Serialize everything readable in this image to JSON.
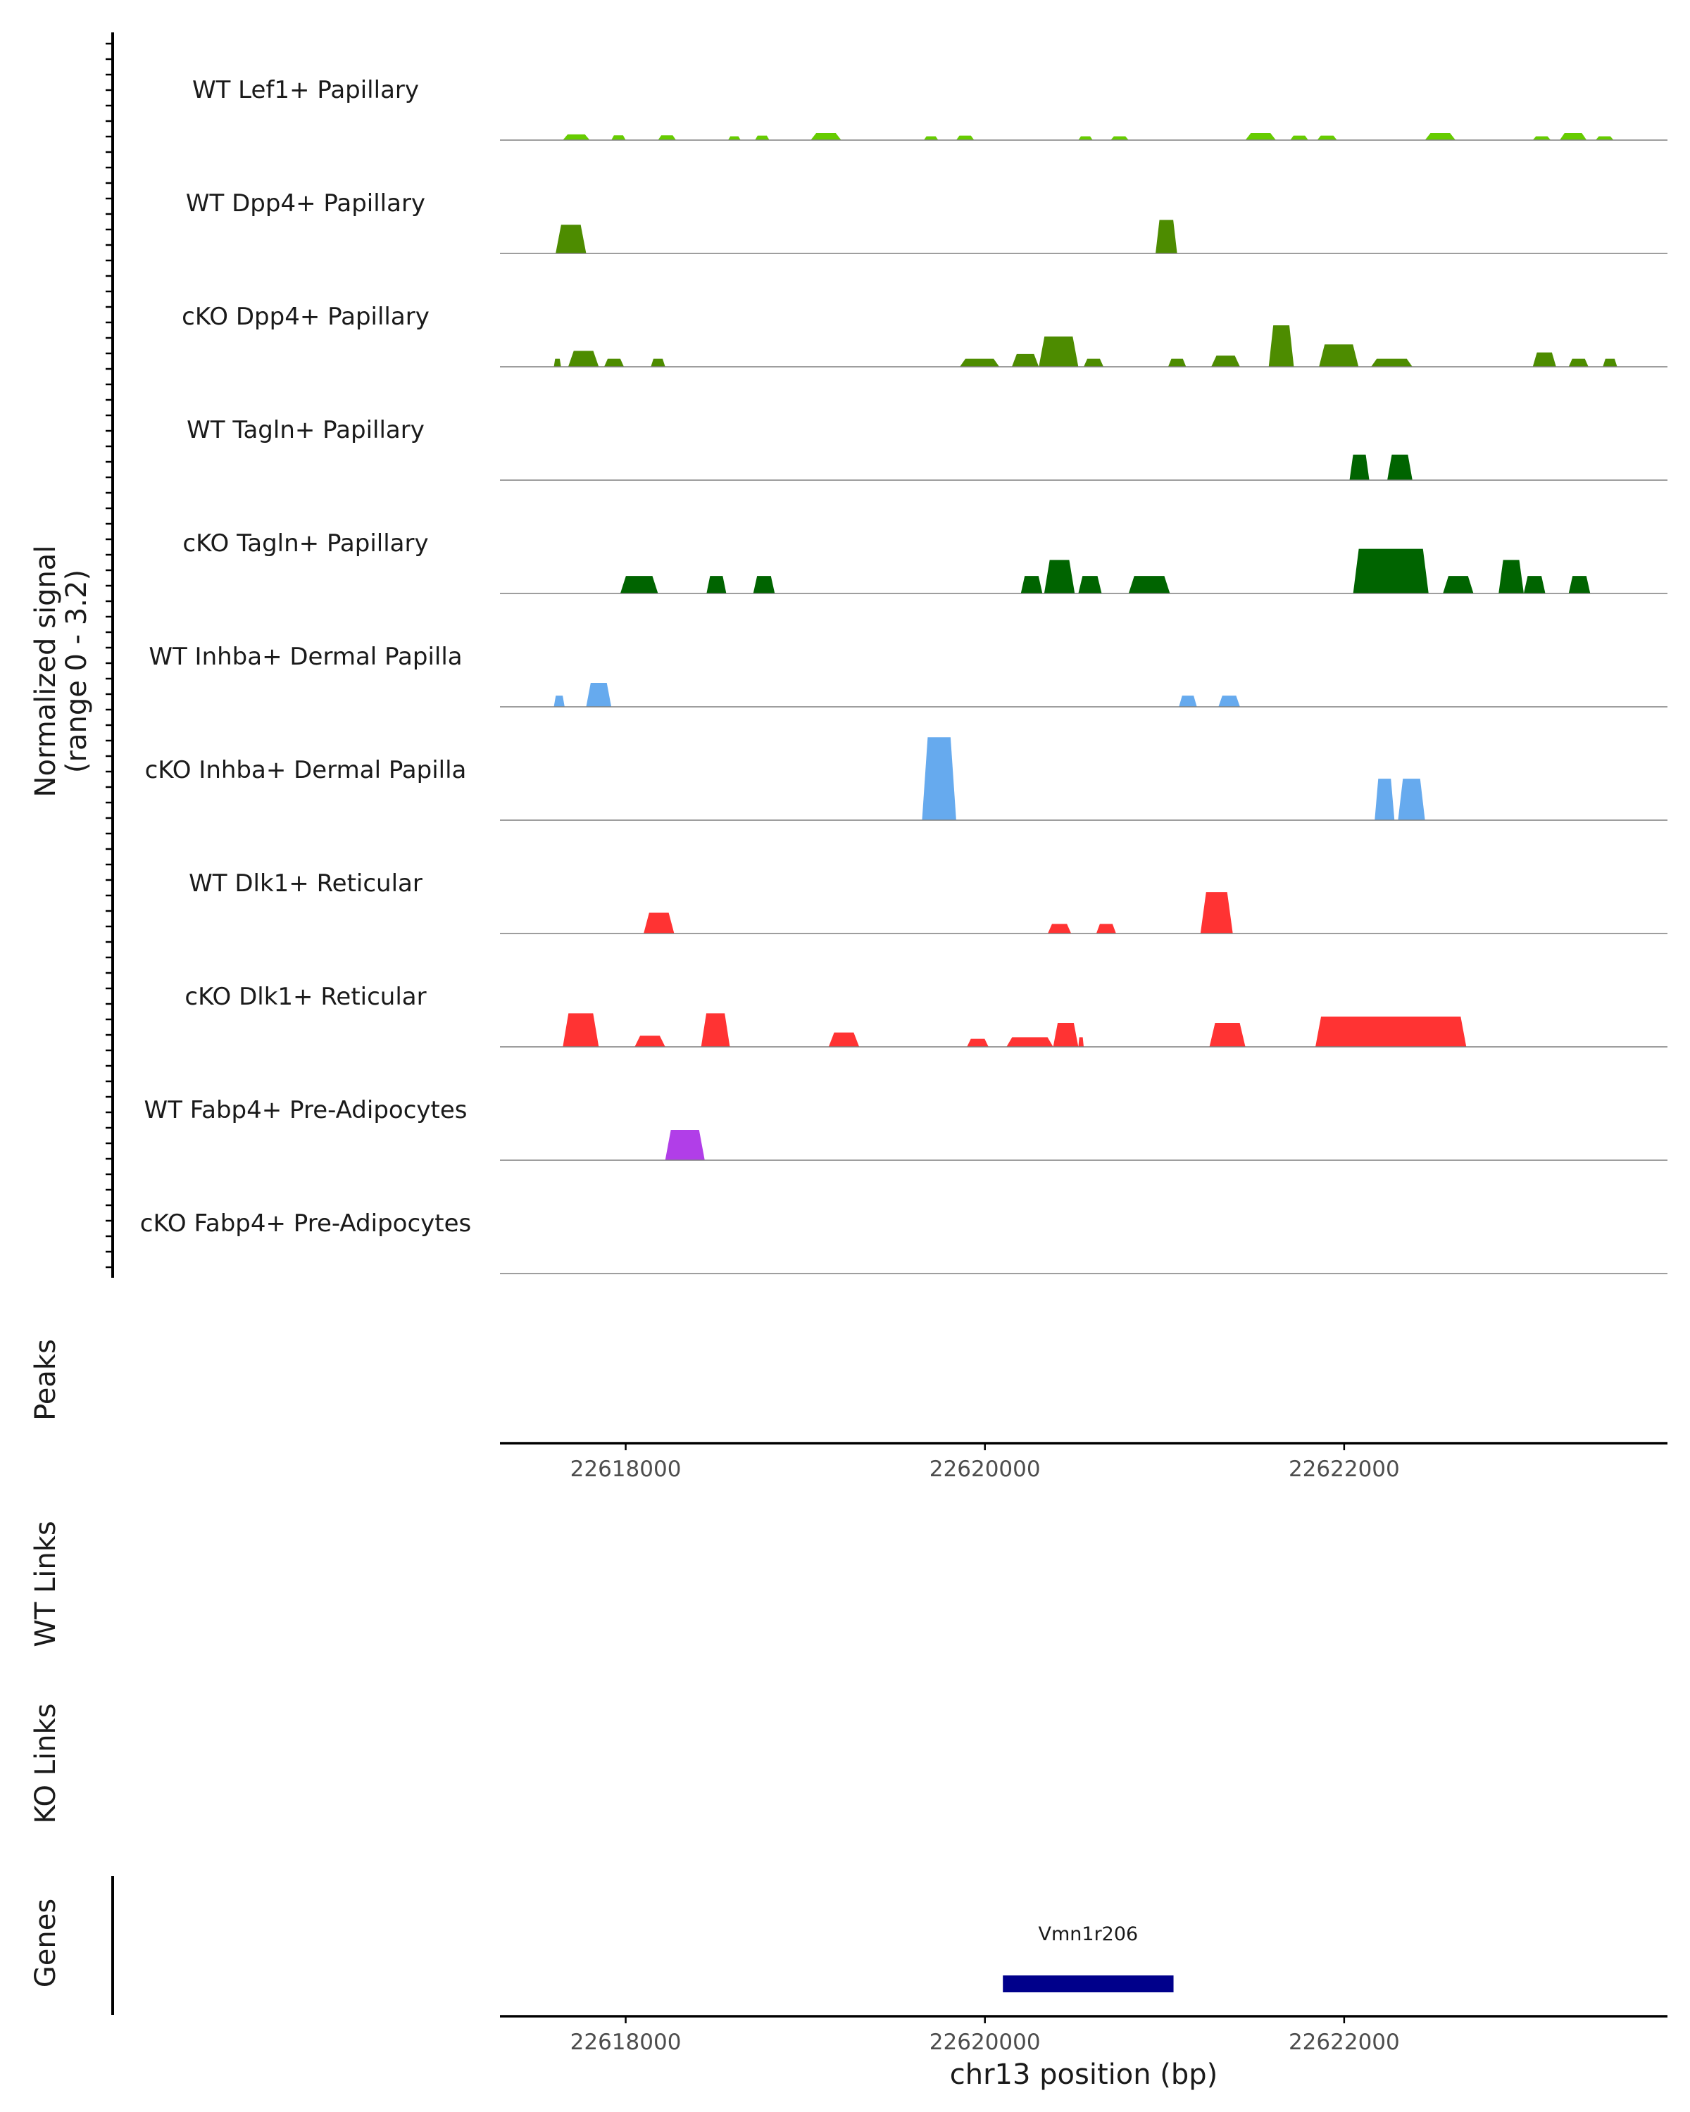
{
  "chart_data": {
    "type": "coverage",
    "signal_axis_title": "Normalized signal",
    "signal_axis_range_label": "(range 0 - 3.2)",
    "ylim": [
      0,
      3.2
    ],
    "xlim": [
      22617300,
      22623800
    ],
    "x_ticks": [
      22618000,
      22620000,
      22622000
    ],
    "x_tick_labels": [
      "22618000",
      "22620000",
      "22622000"
    ],
    "xlabel": "chr13 position (bp)",
    "tracks": [
      {
        "name": "WT Lef1+ Papillary",
        "color": "#66cc00",
        "peaks": [
          [
            22617650,
            22617800,
            0.18
          ],
          [
            22617920,
            22618000,
            0.15
          ],
          [
            22618180,
            22618280,
            0.15
          ],
          [
            22618570,
            22618640,
            0.12
          ],
          [
            22618720,
            22618800,
            0.14
          ],
          [
            22619030,
            22619200,
            0.22
          ],
          [
            22619660,
            22619740,
            0.12
          ],
          [
            22619840,
            22619940,
            0.14
          ],
          [
            22620520,
            22620600,
            0.12
          ],
          [
            22620700,
            22620800,
            0.12
          ],
          [
            22621450,
            22621620,
            0.22
          ],
          [
            22621700,
            22621800,
            0.14
          ],
          [
            22621850,
            22621960,
            0.14
          ],
          [
            22622450,
            22622620,
            0.22
          ],
          [
            22623050,
            22623150,
            0.12
          ],
          [
            22623200,
            22623350,
            0.22
          ],
          [
            22623400,
            22623500,
            0.12
          ]
        ]
      },
      {
        "name": "WT Dpp4+ Papillary",
        "color": "#4d8c00",
        "peaks": [
          [
            22617610,
            22617780,
            0.9
          ],
          [
            22620950,
            22621070,
            1.05
          ]
        ]
      },
      {
        "name": "cKO Dpp4+ Papillary",
        "color": "#4d8c00",
        "peaks": [
          [
            22617600,
            22617640,
            0.25
          ],
          [
            22617680,
            22617850,
            0.5
          ],
          [
            22617880,
            22617990,
            0.25
          ],
          [
            22618140,
            22618220,
            0.25
          ],
          [
            22619860,
            22620080,
            0.25
          ],
          [
            22620150,
            22620300,
            0.4
          ],
          [
            22620300,
            22620520,
            0.95
          ],
          [
            22620550,
            22620660,
            0.25
          ],
          [
            22621020,
            22621120,
            0.25
          ],
          [
            22621260,
            22621420,
            0.35
          ],
          [
            22621580,
            22621720,
            1.3
          ],
          [
            22621860,
            22622080,
            0.7
          ],
          [
            22622150,
            22622380,
            0.25
          ],
          [
            22623050,
            22623180,
            0.45
          ],
          [
            22623250,
            22623360,
            0.25
          ],
          [
            22623440,
            22623520,
            0.25
          ]
        ]
      },
      {
        "name": "WT Tagln+ Papillary",
        "color": "#006400",
        "peaks": [
          [
            22622030,
            22622140,
            0.8
          ],
          [
            22622240,
            22622380,
            0.8
          ]
        ]
      },
      {
        "name": "cKO Tagln+ Papillary",
        "color": "#006400",
        "peaks": [
          [
            22617970,
            22618180,
            0.55
          ],
          [
            22618450,
            22618560,
            0.55
          ],
          [
            22618710,
            22618830,
            0.55
          ],
          [
            22620200,
            22620320,
            0.55
          ],
          [
            22620330,
            22620500,
            1.05
          ],
          [
            22620520,
            22620650,
            0.55
          ],
          [
            22620800,
            22621030,
            0.55
          ],
          [
            22622050,
            22622470,
            1.4
          ],
          [
            22622550,
            22622720,
            0.55
          ],
          [
            22622860,
            22623000,
            1.05
          ],
          [
            22623000,
            22623120,
            0.55
          ],
          [
            22623250,
            22623370,
            0.55
          ]
        ]
      },
      {
        "name": "WT Inhba+ Dermal Papilla",
        "color": "#66aaee",
        "peaks": [
          [
            22617600,
            22617660,
            0.35
          ],
          [
            22617780,
            22617920,
            0.75
          ],
          [
            22621080,
            22621180,
            0.35
          ],
          [
            22621300,
            22621420,
            0.35
          ]
        ]
      },
      {
        "name": "cKO Inhba+ Dermal Papilla",
        "color": "#66aaee",
        "peaks": [
          [
            22619650,
            22619840,
            2.6
          ],
          [
            22622170,
            22622280,
            1.3
          ],
          [
            22622300,
            22622450,
            1.3
          ]
        ]
      },
      {
        "name": "WT Dlk1+ Reticular",
        "color": "#ff3333",
        "peaks": [
          [
            22618100,
            22618270,
            0.65
          ],
          [
            22620350,
            22620480,
            0.3
          ],
          [
            22620620,
            22620730,
            0.3
          ],
          [
            22621200,
            22621380,
            1.3
          ]
        ]
      },
      {
        "name": "cKO Dlk1+ Reticular",
        "color": "#ff3333",
        "peaks": [
          [
            22617650,
            22617850,
            1.05
          ],
          [
            22618050,
            22618220,
            0.35
          ],
          [
            22618420,
            22618580,
            1.05
          ],
          [
            22619130,
            22619300,
            0.45
          ],
          [
            22619900,
            22620020,
            0.25
          ],
          [
            22620120,
            22620380,
            0.3
          ],
          [
            22620380,
            22620520,
            0.75
          ],
          [
            22620520,
            22620550,
            0.3
          ],
          [
            22621250,
            22621450,
            0.75
          ],
          [
            22621840,
            22622680,
            0.95
          ]
        ]
      },
      {
        "name": "WT Fabp4+ Pre-Adipocytes",
        "color": "#b13ee8",
        "peaks": [
          [
            22618220,
            22618440,
            0.95
          ]
        ]
      },
      {
        "name": "cKO Fabp4+ Pre-Adipocytes",
        "color": "#b13ee8",
        "peaks": []
      }
    ],
    "peaks_label": "Peaks",
    "wt_links_label": "WT Links",
    "ko_links_label": "KO Links",
    "genes_label": "Genes",
    "genes": [
      {
        "name": "Vmn1r206",
        "start": 22620100,
        "end": 22621050,
        "color": "#00008b"
      }
    ]
  }
}
